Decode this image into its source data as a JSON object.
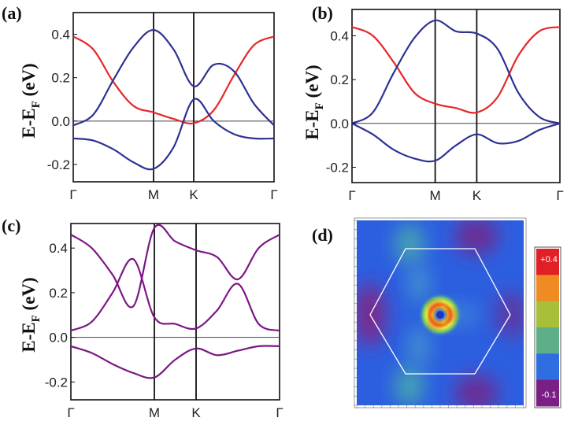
{
  "chart_data": [
    {
      "type": "line",
      "panel_label": "(a)",
      "ylabel": "E-E_F (eV)",
      "ylabel_main": "E-E",
      "ylabel_sub": "F",
      "ylabel_units": " (eV)",
      "ylim": [
        -0.28,
        0.5
      ],
      "yticks": [
        "0.4",
        "0.2",
        "0.0",
        "-0.2"
      ],
      "ytick_values": [
        0.4,
        0.2,
        0.0,
        -0.2
      ],
      "xticks": [
        "Γ",
        "M",
        "K",
        "Γ"
      ],
      "xtick_positions": [
        0,
        1,
        1.5,
        2.5
      ],
      "series": [
        {
          "name": "band-1",
          "color": "#e8262a",
          "x": [
            0,
            0.25,
            0.5,
            0.75,
            1.0,
            1.25,
            1.5,
            1.75,
            2.0,
            2.25,
            2.5
          ],
          "values": [
            0.39,
            0.33,
            0.18,
            0.07,
            0.04,
            0.01,
            -0.01,
            0.05,
            0.21,
            0.35,
            0.39
          ]
        },
        {
          "name": "band-2",
          "color": "#2e3192",
          "x": [
            0,
            0.25,
            0.5,
            0.75,
            1.0,
            1.25,
            1.5,
            1.75,
            2.0,
            2.25,
            2.5
          ],
          "values": [
            -0.02,
            0.03,
            0.19,
            0.34,
            0.42,
            0.33,
            0.16,
            0.26,
            0.23,
            0.08,
            -0.02
          ]
        },
        {
          "name": "band-3",
          "color": "#2e3192",
          "x": [
            0,
            0.25,
            0.5,
            0.75,
            1.0,
            1.25,
            1.5,
            1.75,
            2.0,
            2.25,
            2.5
          ],
          "values": [
            -0.08,
            -0.09,
            -0.13,
            -0.19,
            -0.22,
            -0.12,
            0.1,
            0.0,
            -0.06,
            -0.08,
            -0.08
          ]
        }
      ]
    },
    {
      "type": "line",
      "panel_label": "(b)",
      "ylabel": "E-E_F (eV)",
      "ylabel_main": "E-E",
      "ylabel_sub": "F",
      "ylabel_units": " (eV)",
      "ylim": [
        -0.27,
        0.52
      ],
      "yticks": [
        "0.4",
        "0.2",
        "0.0",
        "-0.2"
      ],
      "ytick_values": [
        0.4,
        0.2,
        0.0,
        -0.2
      ],
      "xticks": [
        "Γ",
        "M",
        "K",
        "Γ"
      ],
      "xtick_positions": [
        0,
        1,
        1.5,
        2.5
      ],
      "series": [
        {
          "name": "band-1",
          "color": "#e8262a",
          "x": [
            0,
            0.25,
            0.5,
            0.75,
            1.0,
            1.25,
            1.5,
            1.75,
            2.0,
            2.25,
            2.5
          ],
          "values": [
            0.44,
            0.4,
            0.28,
            0.14,
            0.09,
            0.07,
            0.05,
            0.12,
            0.31,
            0.42,
            0.44
          ]
        },
        {
          "name": "band-2",
          "color": "#2e3192",
          "x": [
            0,
            0.25,
            0.5,
            0.75,
            1.0,
            1.25,
            1.5,
            1.75,
            2.0,
            2.25,
            2.5
          ],
          "values": [
            0.0,
            0.05,
            0.23,
            0.39,
            0.47,
            0.42,
            0.41,
            0.34,
            0.14,
            0.03,
            0.0
          ]
        },
        {
          "name": "band-3",
          "color": "#2e3192",
          "x": [
            0,
            0.25,
            0.5,
            0.75,
            1.0,
            1.25,
            1.5,
            1.75,
            2.0,
            2.25,
            2.5
          ],
          "values": [
            0.0,
            -0.05,
            -0.12,
            -0.16,
            -0.17,
            -0.1,
            -0.05,
            -0.09,
            -0.08,
            -0.03,
            0.0
          ]
        }
      ]
    },
    {
      "type": "line",
      "panel_label": "(c)",
      "ylabel": "E-E_F (eV)",
      "ylabel_main": "E-E",
      "ylabel_sub": "F",
      "ylabel_units": " (eV)",
      "ylim": [
        -0.28,
        0.51
      ],
      "yticks": [
        "0.4",
        "0.2",
        "0.0",
        "-0.2"
      ],
      "ytick_values": [
        0.4,
        0.2,
        0.0,
        -0.2
      ],
      "xticks": [
        "Γ",
        "M",
        "K",
        "Γ"
      ],
      "xtick_positions": [
        0,
        1,
        1.5,
        2.5
      ],
      "series": [
        {
          "name": "band-1",
          "color": "#7b1785",
          "x": [
            0,
            0.25,
            0.5,
            0.75,
            1.0,
            1.25,
            1.5,
            1.75,
            2.0,
            2.25,
            2.5
          ],
          "values": [
            0.46,
            0.4,
            0.28,
            0.14,
            0.49,
            0.43,
            0.39,
            0.36,
            0.26,
            0.4,
            0.46
          ]
        },
        {
          "name": "band-2",
          "color": "#7b1785",
          "x": [
            0,
            0.25,
            0.5,
            0.75,
            1.0,
            1.25,
            1.5,
            1.75,
            2.0,
            2.25,
            2.5
          ],
          "values": [
            0.03,
            0.07,
            0.2,
            0.35,
            0.09,
            0.06,
            0.04,
            0.12,
            0.24,
            0.06,
            0.03
          ]
        },
        {
          "name": "band-3",
          "color": "#7b1785",
          "x": [
            0,
            0.25,
            0.5,
            0.75,
            1.0,
            1.25,
            1.5,
            1.75,
            2.0,
            2.25,
            2.5
          ],
          "values": [
            -0.04,
            -0.07,
            -0.12,
            -0.16,
            -0.18,
            -0.1,
            -0.05,
            -0.08,
            -0.06,
            -0.04,
            -0.04
          ]
        }
      ]
    },
    {
      "type": "heatmap",
      "panel_label": "(d)",
      "colorbar": {
        "range": [
          -0.1,
          0.4
        ],
        "top_label": "+0.4",
        "bottom_label": "-0.1",
        "colors": [
          "#e11f26",
          "#ef8b22",
          "#a8bf3a",
          "#5fae8a",
          "#2f6ee0",
          "#7a1f86"
        ]
      }
    }
  ]
}
